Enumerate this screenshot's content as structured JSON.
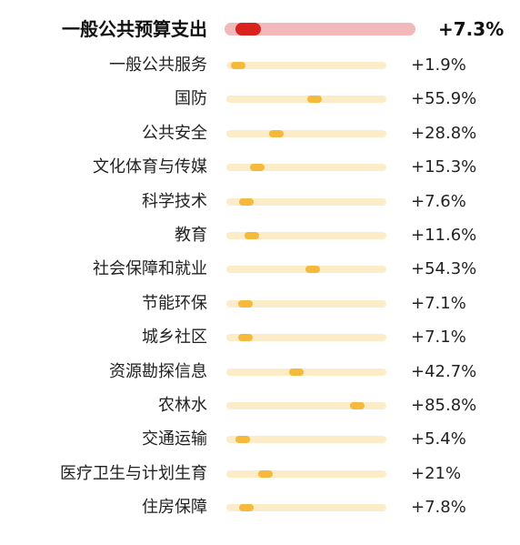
{
  "chart_data": {
    "type": "bar",
    "title": "",
    "xlabel": "",
    "ylabel": "",
    "xlim": [
      0,
      100
    ],
    "grid": false,
    "legend": "none",
    "total": {
      "label": "一般公共预算支出",
      "value": 7.3,
      "value_label": "+7.3%"
    },
    "categories": [
      "一般公共服务",
      "国防",
      "公共安全",
      "文化体育与传媒",
      "科学技术",
      "教育",
      "社会保障和就业",
      "节能环保",
      "城乡社区",
      "资源勘探信息",
      "农林水",
      "交通运输",
      "医疗卫生与计划生育",
      "住房保障"
    ],
    "values": [
      1.9,
      55.9,
      28.8,
      15.3,
      7.6,
      11.6,
      54.3,
      7.1,
      7.1,
      42.7,
      85.8,
      5.4,
      21,
      7.8
    ],
    "value_labels": [
      "+1.9%",
      "+55.9%",
      "+28.8%",
      "+15.3%",
      "+7.6%",
      "+11.6%",
      "+54.3%",
      "+7.1%",
      "+7.1%",
      "+42.7%",
      "+85.8%",
      "+5.4%",
      "+21%",
      "+7.8%"
    ],
    "colors": {
      "total_track": "#f3b9ba",
      "total_marker": "#d9211e",
      "track": "#fdecc8",
      "marker": "#f5b93c",
      "text": "#222222"
    }
  }
}
